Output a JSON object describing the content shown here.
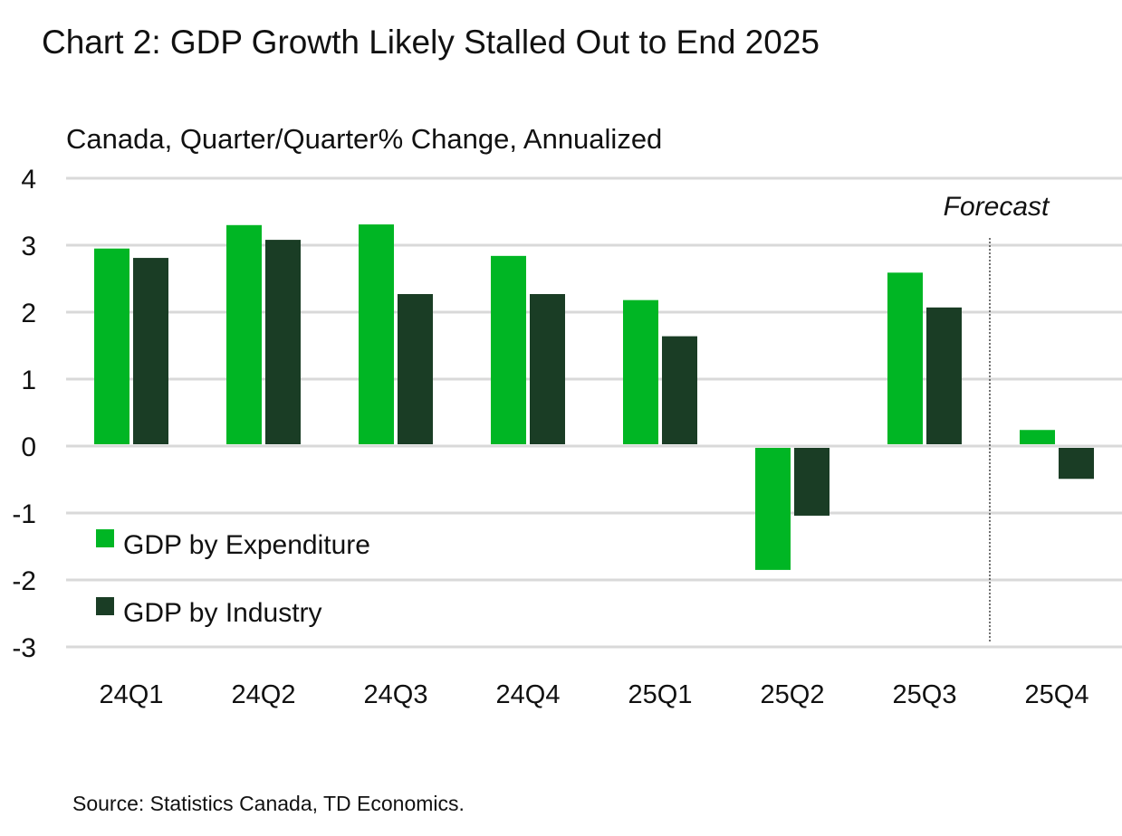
{
  "chart_data": {
    "type": "bar",
    "title": "Chart 2: GDP Growth Likely Stalled Out to End 2025",
    "subtitle": "Canada, Quarter/Quarter% Change, Annualized",
    "source": "Source: Statistics Canada, TD Economics.",
    "categories": [
      "24Q1",
      "24Q2",
      "24Q3",
      "24Q4",
      "25Q1",
      "25Q2",
      "25Q3",
      "25Q4"
    ],
    "series": [
      {
        "name": "GDP by Expenditure",
        "color": "#00B624",
        "values": [
          2.95,
          3.3,
          3.31,
          2.84,
          2.18,
          -1.85,
          2.59,
          0.24
        ]
      },
      {
        "name": "GDP by Industry",
        "color": "#1A3D25",
        "values": [
          2.81,
          3.08,
          2.27,
          2.27,
          1.64,
          -1.04,
          2.07,
          -0.49
        ]
      }
    ],
    "ylim": [
      -3,
      4
    ],
    "yticks": [
      4,
      3,
      2,
      1,
      0,
      -1,
      -2,
      -3
    ],
    "grid": true,
    "legend": "bottom-left",
    "annotation": "Forecast",
    "forecast_starts": "25Q4"
  }
}
